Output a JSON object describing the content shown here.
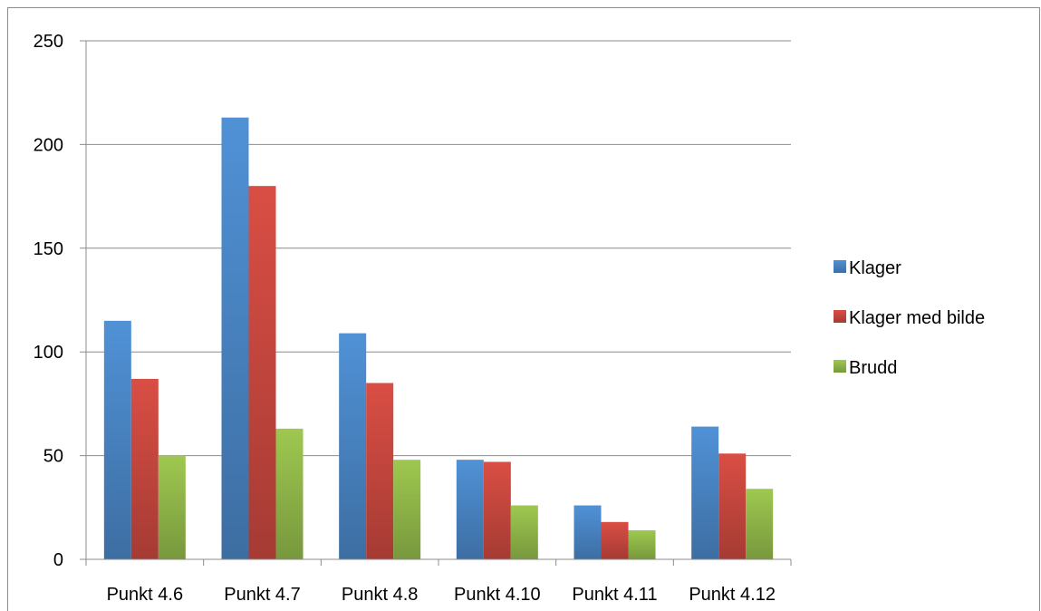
{
  "chart_data": {
    "type": "bar",
    "categories": [
      "Punkt 4.6",
      "Punkt 4.7",
      "Punkt 4.8",
      "Punkt 4.10",
      "Punkt 4.11",
      "Punkt 4.12"
    ],
    "series": [
      {
        "name": "Klager",
        "color": "#4a86c6",
        "values": [
          115,
          213,
          109,
          48,
          26,
          64
        ]
      },
      {
        "name": "Klager med bilde",
        "color": "#c9483f",
        "values": [
          87,
          180,
          85,
          47,
          18,
          51
        ]
      },
      {
        "name": "Brudd",
        "color": "#92b94a",
        "values": [
          50,
          63,
          48,
          26,
          14,
          34
        ]
      }
    ],
    "yticks": [
      "0",
      "50",
      "100",
      "150",
      "200",
      "250"
    ],
    "ylim": [
      0,
      250
    ],
    "grid": true,
    "legend_position": "right"
  }
}
